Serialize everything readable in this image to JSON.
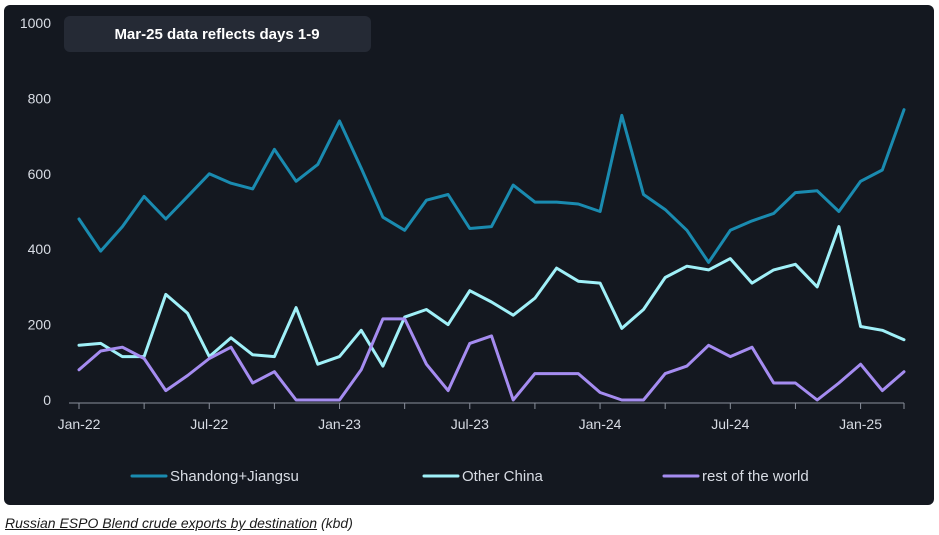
{
  "caption": {
    "title": "Russian ESPO Blend crude exports by destination",
    "unit": "(kbd)"
  },
  "colors": {
    "background": "#141820",
    "axis": "#8a909c",
    "annotation_box": "#252a35"
  },
  "chart_data": {
    "type": "line",
    "title": "",
    "annotation": "Mar-25 data reflects days 1-9",
    "xlabel": "",
    "ylabel": "",
    "ylim": [
      0,
      1000
    ],
    "yticks": [
      "0",
      "200",
      "400",
      "600",
      "800",
      "1000"
    ],
    "grid": false,
    "legend_position": "bottom",
    "x": [
      "Jan-22",
      "Feb-22",
      "Mar-22",
      "Apr-22",
      "May-22",
      "Jun-22",
      "Jul-22",
      "Aug-22",
      "Sep-22",
      "Oct-22",
      "Nov-22",
      "Dec-22",
      "Jan-23",
      "Feb-23",
      "Mar-23",
      "Apr-23",
      "May-23",
      "Jun-23",
      "Jul-23",
      "Aug-23",
      "Sep-23",
      "Oct-23",
      "Nov-23",
      "Dec-23",
      "Jan-24",
      "Feb-24",
      "Mar-24",
      "Apr-24",
      "May-24",
      "Jun-24",
      "Jul-24",
      "Aug-24",
      "Sep-24",
      "Oct-24",
      "Nov-24",
      "Dec-24",
      "Jan-25",
      "Feb-25",
      "Mar-25"
    ],
    "xtick_labels": [
      {
        "index": 0,
        "label": "Jan-22"
      },
      {
        "index": 6,
        "label": "Jul-22"
      },
      {
        "index": 12,
        "label": "Jan-23"
      },
      {
        "index": 18,
        "label": "Jul-23"
      },
      {
        "index": 24,
        "label": "Jan-24"
      },
      {
        "index": 30,
        "label": "Jul-24"
      },
      {
        "index": 36,
        "label": "Jan-25"
      }
    ],
    "series": [
      {
        "name": "Shandong+Jiangsu",
        "color": "#1a8bb0",
        "values": [
          480,
          395,
          460,
          540,
          480,
          540,
          600,
          575,
          560,
          665,
          580,
          625,
          740,
          615,
          485,
          450,
          530,
          545,
          455,
          460,
          570,
          525,
          525,
          520,
          500,
          755,
          545,
          505,
          450,
          365,
          450,
          475,
          495,
          550,
          555,
          500,
          580,
          610,
          770
        ]
      },
      {
        "name": "Other China",
        "color": "#a0f0f8",
        "values": [
          145,
          150,
          115,
          115,
          280,
          230,
          115,
          165,
          120,
          115,
          245,
          95,
          115,
          185,
          90,
          220,
          240,
          200,
          290,
          260,
          225,
          270,
          350,
          315,
          310,
          190,
          240,
          325,
          355,
          345,
          375,
          310,
          345,
          360,
          300,
          460,
          195,
          185,
          160
        ]
      },
      {
        "name": "rest of the world",
        "color": "#a58cf0",
        "values": [
          80,
          130,
          140,
          110,
          25,
          65,
          110,
          140,
          45,
          75,
          0,
          0,
          0,
          80,
          215,
          215,
          95,
          25,
          150,
          170,
          0,
          70,
          70,
          70,
          20,
          0,
          0,
          70,
          90,
          145,
          115,
          140,
          45,
          45,
          0,
          45,
          95,
          25,
          75
        ]
      }
    ]
  }
}
